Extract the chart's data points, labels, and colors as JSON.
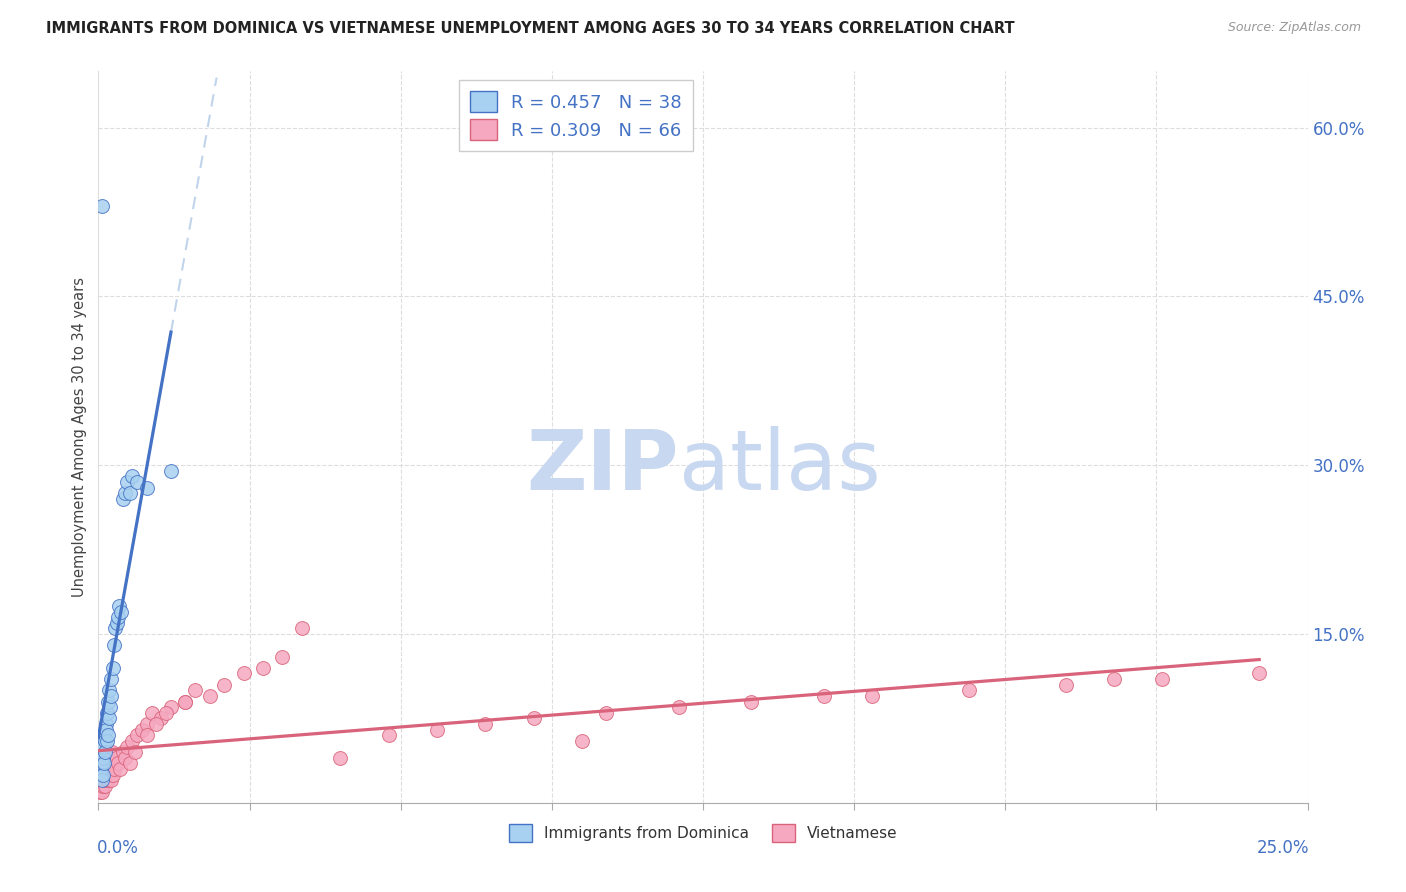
{
  "title": "IMMIGRANTS FROM DOMINICA VS VIETNAMESE UNEMPLOYMENT AMONG AGES 30 TO 34 YEARS CORRELATION CHART",
  "source": "Source: ZipAtlas.com",
  "ylabel": "Unemployment Among Ages 30 to 34 years",
  "xlim": [
    0,
    0.25
  ],
  "ylim": [
    0,
    0.65
  ],
  "right_yticks": [
    0.15,
    0.3,
    0.45,
    0.6
  ],
  "right_yticklabels": [
    "15.0%",
    "30.0%",
    "45.0%",
    "60.0%"
  ],
  "dominica_R": 0.457,
  "dominica_N": 38,
  "vietnamese_R": 0.309,
  "vietnamese_N": 66,
  "dominica_color": "#A8D0F0",
  "vietnamese_color": "#F5A8C0",
  "trend_dominica_color": "#4472C4",
  "trend_vietnamese_color": "#D9637A",
  "trend_extended_color": "#C0D4EC",
  "background_color": "#FFFFFF",
  "watermark_zip": "ZIP",
  "watermark_atlas": "atlas",
  "watermark_color_zip": "#C8D8F0",
  "watermark_color_atlas": "#C8D8F0",
  "title_fontsize": 10.5,
  "source_fontsize": 9,
  "dominica_x": [
    0.0005,
    0.0006,
    0.0007,
    0.0008,
    0.0009,
    0.001,
    0.001,
    0.0011,
    0.0012,
    0.0013,
    0.0014,
    0.0015,
    0.0016,
    0.0017,
    0.0018,
    0.0019,
    0.002,
    0.0021,
    0.0022,
    0.0023,
    0.0025,
    0.0027,
    0.003,
    0.0032,
    0.0035,
    0.0038,
    0.004,
    0.0043,
    0.0046,
    0.005,
    0.0055,
    0.006,
    0.0065,
    0.007,
    0.008,
    0.01,
    0.015,
    0.0008
  ],
  "dominica_y": [
    0.025,
    0.03,
    0.02,
    0.035,
    0.04,
    0.025,
    0.05,
    0.06,
    0.035,
    0.055,
    0.045,
    0.07,
    0.065,
    0.08,
    0.055,
    0.09,
    0.06,
    0.1,
    0.075,
    0.085,
    0.095,
    0.11,
    0.12,
    0.14,
    0.155,
    0.16,
    0.165,
    0.175,
    0.17,
    0.27,
    0.275,
    0.285,
    0.275,
    0.29,
    0.285,
    0.28,
    0.295,
    0.53
  ],
  "vietnamese_x": [
    0.0003,
    0.0005,
    0.0006,
    0.0007,
    0.0008,
    0.0009,
    0.001,
    0.0011,
    0.0012,
    0.0013,
    0.0014,
    0.0015,
    0.0016,
    0.0017,
    0.0018,
    0.0019,
    0.002,
    0.0022,
    0.0024,
    0.0026,
    0.0028,
    0.003,
    0.0033,
    0.0036,
    0.004,
    0.0045,
    0.005,
    0.0055,
    0.006,
    0.0065,
    0.007,
    0.0075,
    0.008,
    0.009,
    0.01,
    0.011,
    0.013,
    0.015,
    0.018,
    0.02,
    0.023,
    0.026,
    0.03,
    0.034,
    0.038,
    0.042,
    0.01,
    0.012,
    0.014,
    0.018,
    0.06,
    0.07,
    0.08,
    0.09,
    0.105,
    0.12,
    0.135,
    0.16,
    0.18,
    0.2,
    0.22,
    0.24,
    0.05,
    0.1,
    0.15,
    0.21
  ],
  "vietnamese_y": [
    0.01,
    0.015,
    0.02,
    0.025,
    0.01,
    0.03,
    0.015,
    0.02,
    0.025,
    0.015,
    0.03,
    0.02,
    0.035,
    0.025,
    0.04,
    0.02,
    0.03,
    0.025,
    0.035,
    0.02,
    0.045,
    0.025,
    0.03,
    0.04,
    0.035,
    0.03,
    0.045,
    0.04,
    0.05,
    0.035,
    0.055,
    0.045,
    0.06,
    0.065,
    0.07,
    0.08,
    0.075,
    0.085,
    0.09,
    0.1,
    0.095,
    0.105,
    0.115,
    0.12,
    0.13,
    0.155,
    0.06,
    0.07,
    0.08,
    0.09,
    0.06,
    0.065,
    0.07,
    0.075,
    0.08,
    0.085,
    0.09,
    0.095,
    0.1,
    0.105,
    0.11,
    0.115,
    0.04,
    0.055,
    0.095,
    0.11
  ],
  "n_xticks": 9,
  "marker_size": 100
}
